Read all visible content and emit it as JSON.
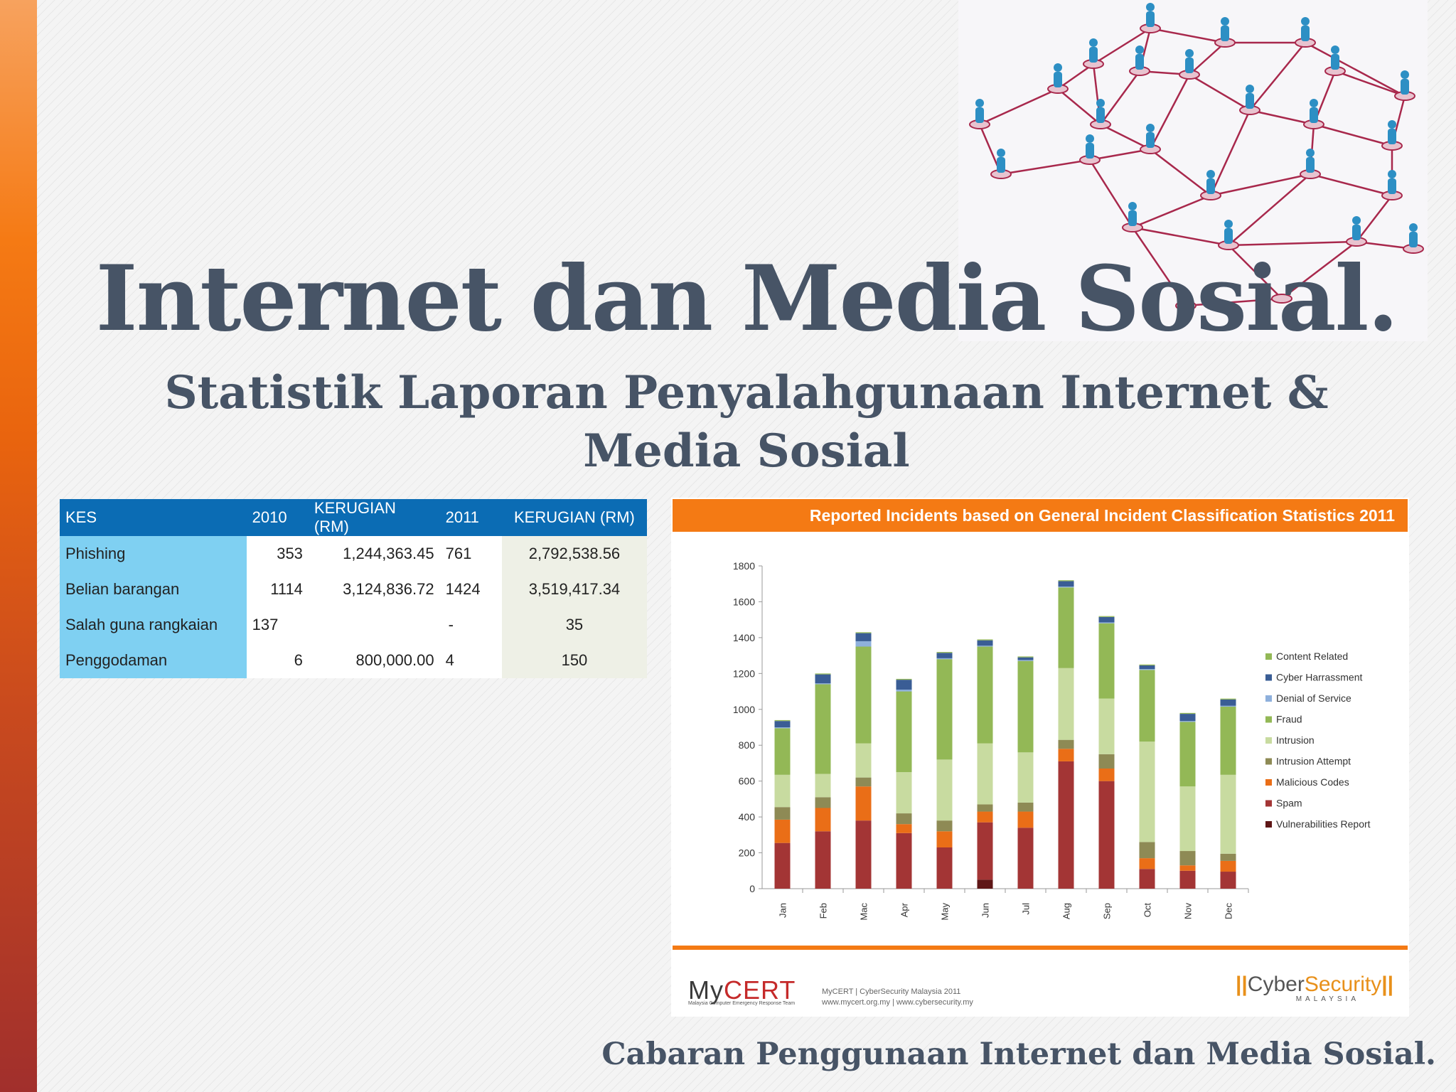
{
  "slide": {
    "title": "Internet dan Media Sosial.",
    "subtitle_line1": "Statistik Laporan Penyalahgunaan Internet &",
    "subtitle_line2": "Media Sosial",
    "footer": "Cabaran Penggunaan Internet dan Media Sosial."
  },
  "table": {
    "headers": [
      "KES",
      "2010",
      "KERUGIAN (RM)",
      "2011",
      "KERUGIAN (RM)"
    ],
    "rows": [
      [
        "Phishing",
        "353",
        "1,244,363.45",
        "761",
        "2,792,538.56"
      ],
      [
        "Belian barangan",
        "1114",
        "3,124,836.72",
        "1424",
        "3,519,417.34"
      ],
      [
        "Salah guna rangkaian",
        "137",
        "",
        "-",
        "35"
      ],
      [
        "Penggodaman",
        "6",
        "800,000.00",
        "4",
        "150"
      ]
    ]
  },
  "chart_panel": {
    "header": "Reported Incidents based on General Incident Classification Statistics 2011",
    "mycert_logo_a": "My",
    "mycert_logo_b": "CERT",
    "mycert_tagline": "Malaysia Computer Emergency Response Team",
    "mycert_info_line1": "MyCERT | CyberSecurity Malaysia 2011",
    "mycert_info_line2": "www.mycert.org.my | www.cybersecurity.my",
    "cs_logo_a": "Cyber",
    "cs_logo_b": "Security",
    "cs_logo_sub": "MALAYSIA"
  },
  "chart_data": {
    "type": "bar",
    "stacked": true,
    "categories": [
      "Jan",
      "Feb",
      "Mac",
      "Apr",
      "May",
      "Jun",
      "Jul",
      "Aug",
      "Sep",
      "Oct",
      "Nov",
      "Dec"
    ],
    "ylim": [
      0,
      1800
    ],
    "yticks": [
      0,
      200,
      400,
      600,
      800,
      1000,
      1200,
      1400,
      1600,
      1800
    ],
    "grid": false,
    "legend_position": "right",
    "series": [
      {
        "name": "Vulnerabilities Report",
        "color": "#5e1616",
        "values": [
          0,
          0,
          0,
          0,
          0,
          50,
          0,
          0,
          0,
          0,
          0,
          0
        ]
      },
      {
        "name": "Spam",
        "color": "#a33535",
        "values": [
          255,
          320,
          380,
          310,
          230,
          320,
          340,
          710,
          600,
          110,
          100,
          95
        ]
      },
      {
        "name": "Malicious Codes",
        "color": "#ea6e17",
        "values": [
          130,
          130,
          190,
          50,
          90,
          60,
          90,
          70,
          70,
          60,
          30,
          60
        ]
      },
      {
        "name": "Intrusion Attempt",
        "color": "#8e8a55",
        "values": [
          70,
          60,
          50,
          60,
          60,
          40,
          50,
          50,
          80,
          90,
          80,
          40
        ]
      },
      {
        "name": "Intrusion",
        "color": "#c8dba0",
        "values": [
          180,
          130,
          190,
          230,
          340,
          340,
          280,
          400,
          310,
          560,
          360,
          440
        ]
      },
      {
        "name": "Fraud",
        "color": "#93b856",
        "values": [
          260,
          500,
          540,
          450,
          560,
          540,
          510,
          450,
          420,
          400,
          360,
          380
        ]
      },
      {
        "name": "Denial of Service",
        "color": "#8eb0dc",
        "values": [
          5,
          5,
          30,
          10,
          5,
          5,
          5,
          5,
          5,
          5,
          5,
          5
        ]
      },
      {
        "name": "Cyber Harrassment",
        "color": "#3a5d95",
        "values": [
          35,
          50,
          45,
          55,
          30,
          30,
          15,
          30,
          30,
          20,
          40,
          35
        ]
      },
      {
        "name": "Content Related",
        "color": "#93b856",
        "values": [
          5,
          5,
          5,
          5,
          5,
          5,
          5,
          5,
          5,
          5,
          5,
          5
        ]
      }
    ],
    "legend_order": [
      "Content Related",
      "Cyber Harrassment",
      "Denial of Service",
      "Fraud",
      "Intrusion",
      "Intrusion Attempt",
      "Malicious Codes",
      "Spam",
      "Vulnerabilities Report"
    ]
  }
}
